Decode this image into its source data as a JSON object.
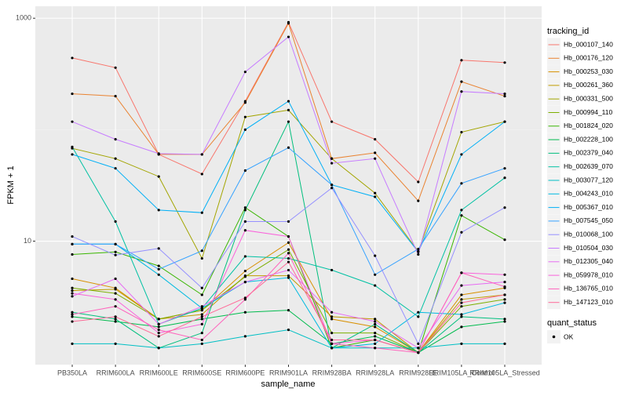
{
  "chart_data": {
    "type": "line",
    "x_label": "sample_name",
    "y_label": "FPKM + 1",
    "log_y": true,
    "grid": true,
    "legend_title": "tracking_id",
    "legend_position": "right",
    "shape_legend_title": "quant_status",
    "shape_legend_labels": [
      "OK"
    ],
    "categories": [
      "PB350LA",
      "RRIM600LA",
      "RRIM600LE",
      "RRIM600SE",
      "RRIM600PE",
      "RRIM901LA",
      "RRIM928BA",
      "RRIM928LA",
      "RRIM928LE",
      "RRIM105LA_Control",
      "RRIM105LA_Stressed"
    ],
    "ylim": [
      0.78,
      1280
    ],
    "yticks": [
      10,
      1000
    ],
    "series": [
      {
        "name": "Hb_000107_140",
        "color": "#F8766D",
        "values": [
          440,
          360,
          60,
          40,
          180,
          920,
          118,
          82,
          34,
          420,
          400
        ]
      },
      {
        "name": "Hb_000176_120",
        "color": "#EA8331",
        "values": [
          210,
          200,
          60,
          60,
          175,
          900,
          55,
          62,
          23,
          270,
          200
        ]
      },
      {
        "name": "Hb_000253_030",
        "color": "#D89000",
        "values": [
          4.6,
          3.8,
          2.0,
          2.4,
          5.4,
          9.7,
          2.0,
          1.7,
          1.0,
          3.3,
          3.8
        ]
      },
      {
        "name": "Hb_000261_360",
        "color": "#C09B00",
        "values": [
          3.6,
          3.7,
          2.0,
          2.2,
          4.9,
          4.9,
          2.1,
          2.0,
          1.0,
          3.0,
          3.3
        ]
      },
      {
        "name": "Hb_000331_500",
        "color": "#A3A500",
        "values": [
          68,
          55,
          38,
          7.0,
          130,
          150,
          55,
          27,
          8.1,
          95,
          118
        ]
      },
      {
        "name": "Hb_000994_110",
        "color": "#7CAE00",
        "values": [
          3.8,
          3.4,
          2.0,
          2.4,
          4.8,
          8.4,
          1.5,
          1.5,
          1.0,
          2.6,
          3.0
        ]
      },
      {
        "name": "Hb_001824_020",
        "color": "#39B600",
        "values": [
          7.6,
          8.0,
          6.0,
          3.3,
          20,
          11,
          1.1,
          1.3,
          1.0,
          17,
          10.3
        ]
      },
      {
        "name": "Hb_002228_100",
        "color": "#00BB4E",
        "values": [
          2.1,
          1.9,
          1.7,
          2.0,
          2.3,
          2.4,
          1.2,
          1.4,
          1.0,
          1.7,
          1.9
        ]
      },
      {
        "name": "Hb_002379_040",
        "color": "#00BF7D",
        "values": [
          2.3,
          2.0,
          1.1,
          1.5,
          19,
          118,
          1.1,
          1.8,
          1.0,
          2.1,
          2.0
        ]
      },
      {
        "name": "Hb_002639_070",
        "color": "#00C1A3",
        "values": [
          70,
          15,
          1.8,
          2.5,
          7.3,
          7.0,
          5.5,
          4.0,
          2.1,
          19,
          37
        ]
      },
      {
        "name": "Hb_003077_120",
        "color": "#00BFC4",
        "values": [
          1.2,
          1.2,
          1.1,
          1.2,
          1.4,
          1.6,
          1.1,
          1.1,
          1.1,
          1.2,
          1.2
        ]
      },
      {
        "name": "Hb_004243_010",
        "color": "#00BAE0",
        "values": [
          9.4,
          9.4,
          5.0,
          2.5,
          4.3,
          4.7,
          1.1,
          1.2,
          2.3,
          2.2,
          2.8
        ]
      },
      {
        "name": "Hb_005367_010",
        "color": "#00B0F6",
        "values": [
          60,
          45,
          19,
          18,
          100,
          180,
          32,
          25,
          8.0,
          60,
          118
        ]
      },
      {
        "name": "Hb_007545_050",
        "color": "#35A2FF",
        "values": [
          9.4,
          9.4,
          5.6,
          8.2,
          43,
          69,
          32,
          5.0,
          8.5,
          33,
          45
        ]
      },
      {
        "name": "Hb_010068_100",
        "color": "#9590FF",
        "values": [
          11,
          7.5,
          8.6,
          3.8,
          15,
          15,
          30,
          7.4,
          1.2,
          12,
          20
        ]
      },
      {
        "name": "Hb_010504_030",
        "color": "#C77CFF",
        "values": [
          118,
          82,
          61,
          60,
          330,
          680,
          50,
          55,
          7.6,
          220,
          210
        ]
      },
      {
        "name": "Hb_012305_040",
        "color": "#E76BF3",
        "values": [
          3.2,
          4.6,
          1.8,
          2.6,
          4.3,
          5.5,
          2.3,
          1.9,
          1.1,
          4.0,
          4.3
        ]
      },
      {
        "name": "Hb_059978_010",
        "color": "#FA62DB",
        "values": [
          3.4,
          3.0,
          1.5,
          1.8,
          12.5,
          11,
          1.2,
          1.3,
          1.0,
          5.2,
          5.0
        ]
      },
      {
        "name": "Hb_136765_010",
        "color": "#FF62BC",
        "values": [
          2.2,
          2.6,
          1.6,
          1.3,
          3.0,
          7.8,
          1.2,
          1.1,
          1.0,
          5.2,
          3.9
        ]
      },
      {
        "name": "Hb_147123_010",
        "color": "#FF6A98",
        "values": [
          1.9,
          2.1,
          1.4,
          2.1,
          3.1,
          6.5,
          1.3,
          1.3,
          1.0,
          2.8,
          3.3
        ]
      }
    ]
  }
}
